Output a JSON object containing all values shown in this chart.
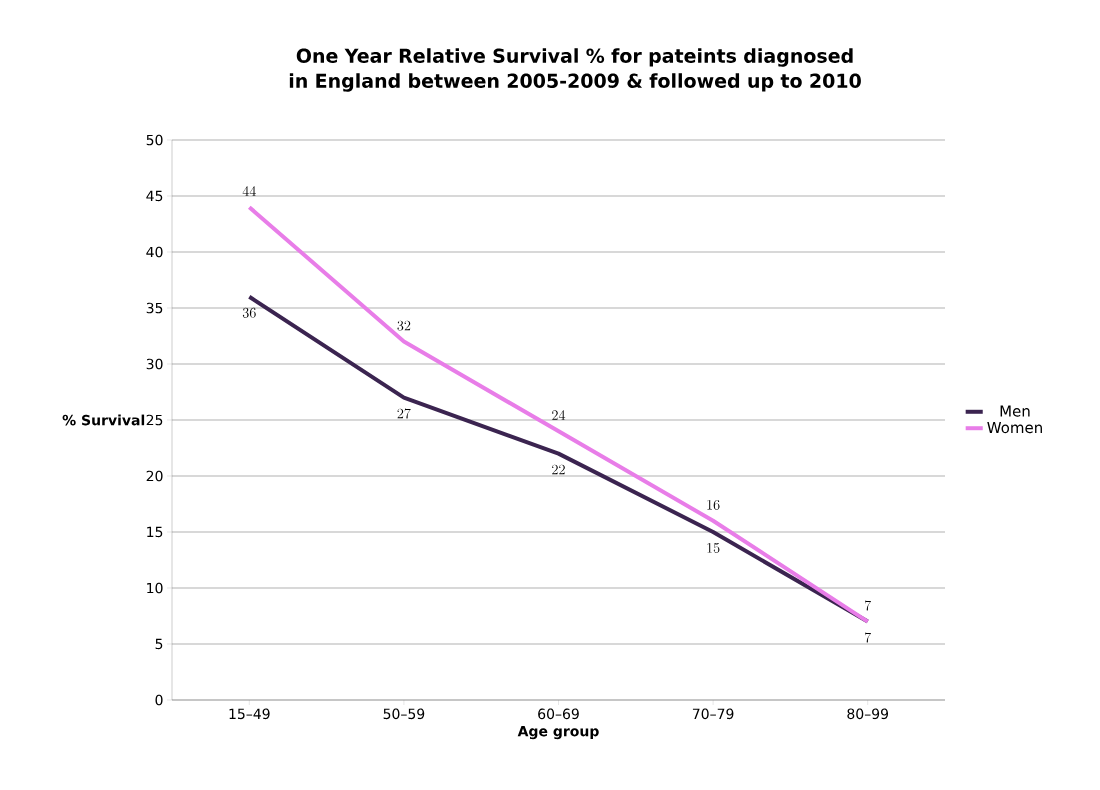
{
  "chart_data": {
    "type": "line",
    "title": "One Year Relative Survival % for pateints diagnosed in England between 2005-2009 & followed up to 2010",
    "xlabel": "Age group",
    "ylabel": "% Survival",
    "categories": [
      "15–49",
      "50–59",
      "60–69",
      "70–79",
      "80–99"
    ],
    "series": [
      {
        "name": "Men",
        "color": "#3b2450",
        "values": [
          36,
          27,
          22,
          15,
          7
        ]
      },
      {
        "name": "Women",
        "color": "#e87de8",
        "values": [
          44,
          32,
          24,
          16,
          7
        ]
      }
    ],
    "ylim": [
      0,
      50
    ],
    "yticks": [
      0,
      5,
      10,
      15,
      20,
      25,
      30,
      35,
      40,
      45,
      50
    ],
    "grid": "y",
    "legend": "right",
    "data_labels": true,
    "marker": "none",
    "line_style": "solid"
  }
}
